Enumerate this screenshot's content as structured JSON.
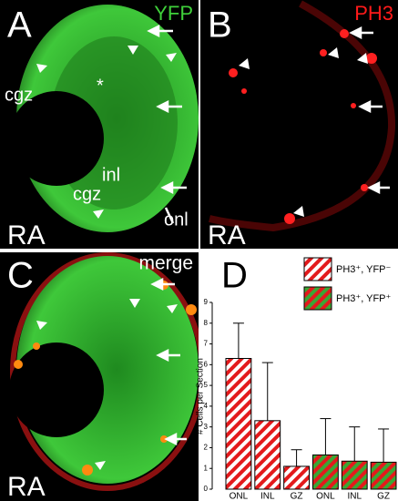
{
  "panels": [
    {
      "letter": "A",
      "channel": "YFP",
      "labels": [
        "cgz",
        "*",
        "inl",
        "cgz",
        "onl"
      ],
      "corner": "RA"
    },
    {
      "letter": "B",
      "channel": "PH3",
      "corner": "RA"
    },
    {
      "letter": "C",
      "channel": "merge",
      "corner": "RA"
    }
  ],
  "chart_data": {
    "type": "bar",
    "letter": "D",
    "ylabel": "# Cells per Section",
    "categories": [
      "ONL",
      "INL",
      "GZ",
      "ONL",
      "INL",
      "GZ"
    ],
    "ylim": [
      0,
      9
    ],
    "yticks": [
      0,
      1,
      2,
      3,
      4,
      5,
      6,
      7,
      8,
      9
    ],
    "series": [
      {
        "name": "PH3⁺, YFP⁻",
        "color": "#e31a1c",
        "hatch_background": "#ffffff",
        "values": [
          6.3,
          3.3,
          1.1,
          null,
          null,
          null
        ],
        "errors": [
          1.7,
          2.8,
          0.8,
          null,
          null,
          null
        ]
      },
      {
        "name": "PH3⁺, YFP⁺",
        "color": "#e31a1c",
        "hatch_background": "#3aa635",
        "values": [
          null,
          null,
          null,
          1.65,
          1.35,
          1.3
        ],
        "errors": [
          null,
          null,
          null,
          1.75,
          1.65,
          1.6
        ]
      }
    ]
  }
}
